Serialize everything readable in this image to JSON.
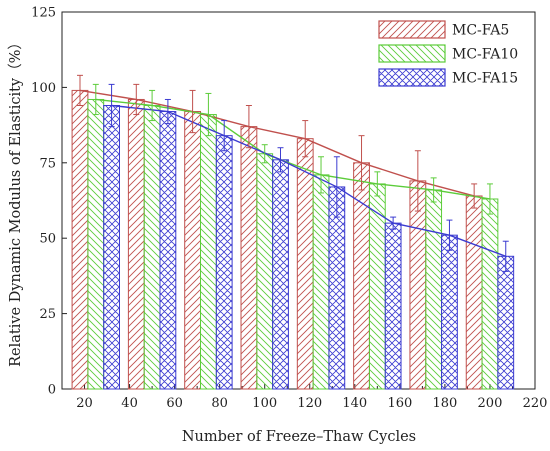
{
  "chart_data": {
    "type": "bar",
    "xlabel": "Number of Freeze–Thaw Cycles",
    "ylabel": "Relative Dynamic Modulus of Elasticity（%）",
    "xlim": [
      10,
      220
    ],
    "ylim": [
      0,
      125
    ],
    "xticks": [
      20,
      40,
      60,
      80,
      100,
      120,
      140,
      160,
      180,
      200,
      220
    ],
    "yticks": [
      0,
      25,
      50,
      75,
      100,
      125
    ],
    "x": [
      25,
      50,
      75,
      100,
      125,
      150,
      175,
      200
    ],
    "legend_position": "top-right",
    "grid": false,
    "series": [
      {
        "name": "MC-FA5",
        "color": "#c0504d",
        "pattern": "diagonal-forward",
        "values": [
          99,
          96,
          92,
          87,
          83,
          75,
          69,
          64
        ],
        "errors": [
          5,
          5,
          7,
          7,
          6,
          9,
          10,
          4
        ]
      },
      {
        "name": "MC-FA10",
        "color": "#5ccc3a",
        "pattern": "diagonal-backward",
        "values": [
          96,
          94,
          91,
          78,
          71,
          68,
          66,
          63
        ],
        "errors": [
          5,
          5,
          7,
          3,
          6,
          4,
          4,
          5
        ]
      },
      {
        "name": "MC-FA15",
        "color": "#3b3bd0",
        "pattern": "cross-hatch",
        "values": [
          94,
          92,
          84,
          76,
          67,
          55,
          51,
          44
        ],
        "errors": [
          7,
          4,
          5,
          4,
          10,
          2,
          5,
          5
        ]
      }
    ]
  }
}
